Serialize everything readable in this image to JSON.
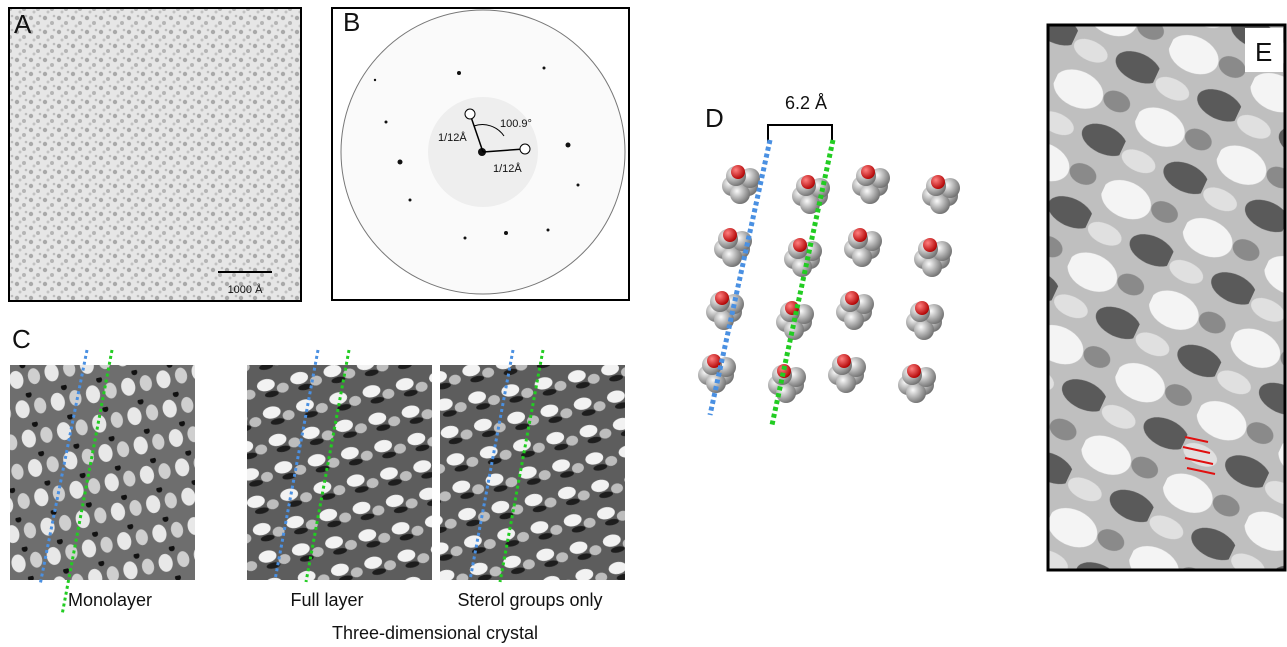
{
  "panels": {
    "a": {
      "label": "A",
      "scale_bar": "1000 Å"
    },
    "b": {
      "label": "B",
      "spacing_1": "1/12Å",
      "spacing_2": "1/12Å",
      "angle": "100.9°"
    },
    "c": {
      "label": "C",
      "images": [
        "Monolayer",
        "Full layer",
        "Sterol groups only"
      ],
      "group_caption": "Three-dimensional crystal"
    },
    "d": {
      "label": "D",
      "spacing": "6.2 Å"
    },
    "e": {
      "label": "E"
    }
  }
}
